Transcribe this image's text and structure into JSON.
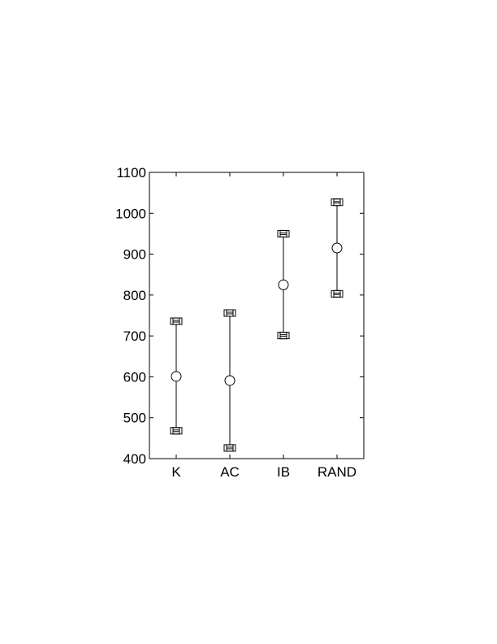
{
  "chart_data": {
    "type": "errorbar",
    "categories": [
      "K",
      "AC",
      "IB",
      "RAND"
    ],
    "series": [
      {
        "center": [
          601,
          591,
          825,
          915
        ],
        "lower": [
          468,
          426,
          701,
          803
        ],
        "upper": [
          736,
          756,
          950,
          1027
        ]
      }
    ],
    "ylim": [
      400,
      1100
    ],
    "yticks": [
      400,
      500,
      600,
      700,
      800,
      900,
      1000,
      1100
    ],
    "title": "",
    "xlabel": "",
    "ylabel": "",
    "grid": false,
    "center_marker": "circle",
    "bound_marker": "boxed-square",
    "color": "#000000"
  }
}
